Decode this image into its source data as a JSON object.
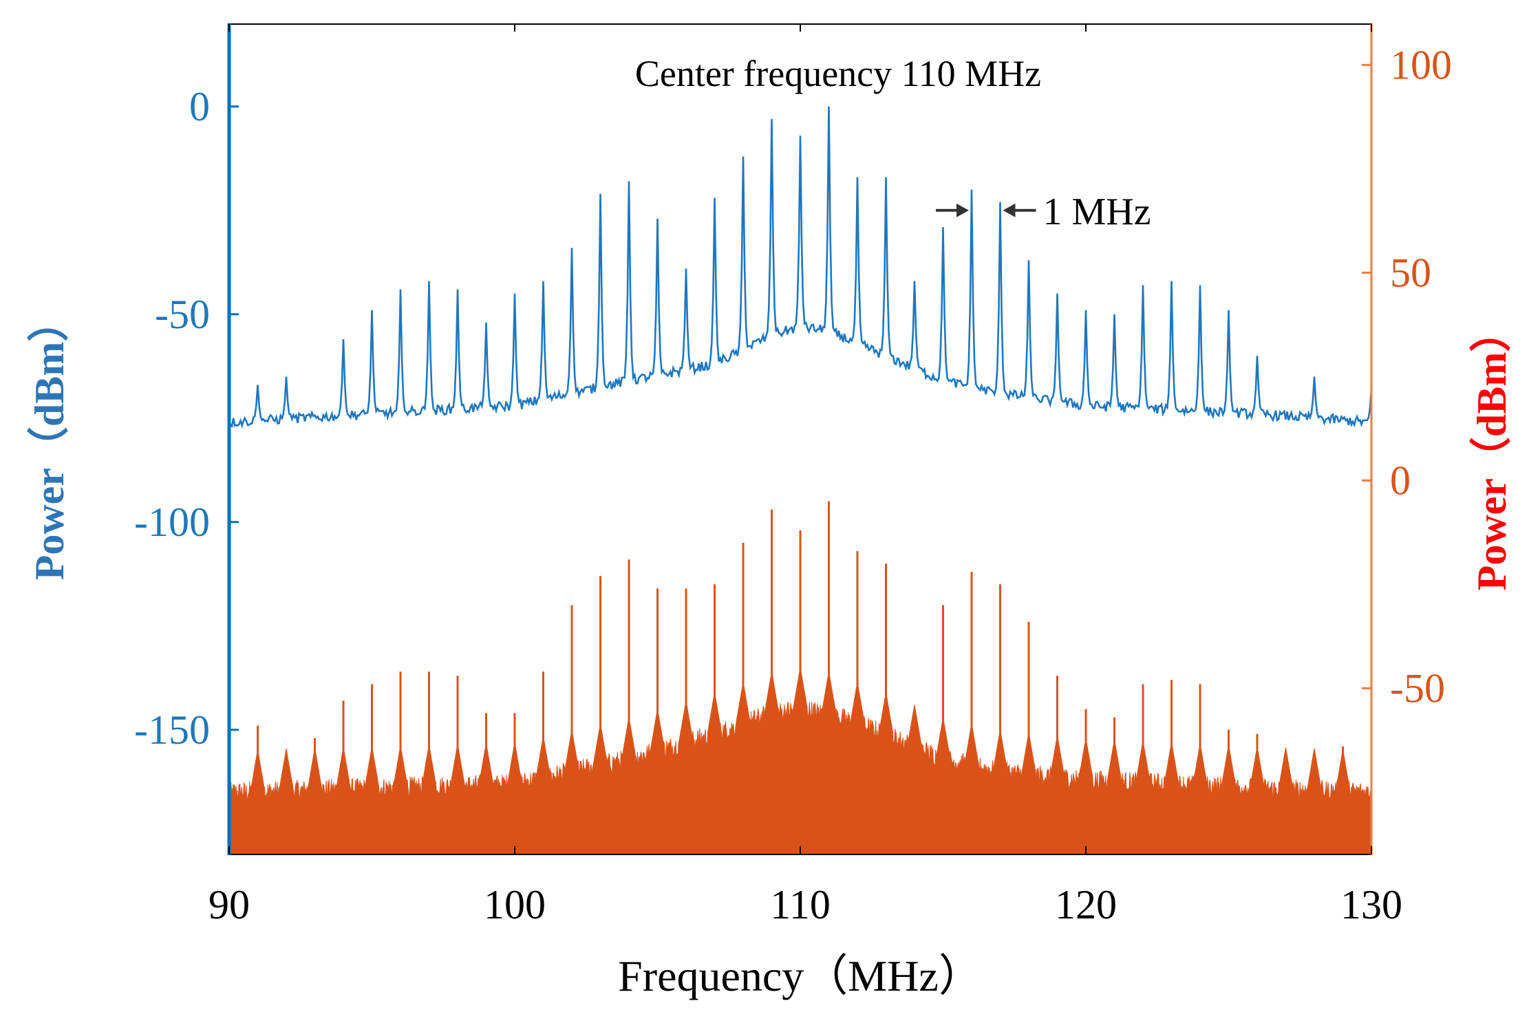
{
  "chart_data": {
    "type": "line",
    "title": "Center frequency 110 MHz",
    "xlabel": "Frequency（MHz）",
    "ylabel_left": "Power（dBm）",
    "ylabel_right": "Power（dBm）",
    "xlim": [
      90,
      130
    ],
    "ylim_left": [
      -180,
      20
    ],
    "ylim_right": [
      -90,
      110
    ],
    "x_ticks": [
      90,
      100,
      110,
      120,
      130
    ],
    "y_ticks_left": [
      0,
      -50,
      -100,
      -150
    ],
    "y_ticks_right": [
      100,
      50,
      0,
      -50
    ],
    "annotation": {
      "text": "1 MHz",
      "between": [
        116,
        117
      ]
    },
    "colors": {
      "left_series": "#1f77bf",
      "right_series": "#d95319",
      "left_axis": "#0072bd",
      "right_axis": "#e87d45",
      "left_tick_label": "#1f78b8",
      "right_tick_label": "#d95319",
      "left_ylabel": "#2e75b6",
      "right_ylabel": "#ff0000",
      "text": "#000000"
    },
    "series": [
      {
        "name": "blue spectrum (left axis, dBm)",
        "axis": "left",
        "baseline": [
          [
            90,
            -76
          ],
          [
            100,
            -72
          ],
          [
            104,
            -66
          ],
          [
            107,
            -62
          ],
          [
            109,
            -55
          ],
          [
            110,
            -53
          ],
          [
            111,
            -54
          ],
          [
            113,
            -60
          ],
          [
            115,
            -66
          ],
          [
            117,
            -69
          ],
          [
            120,
            -72
          ],
          [
            126,
            -74
          ],
          [
            130,
            -76
          ]
        ],
        "peaks": [
          [
            91,
            -67
          ],
          [
            92,
            -65
          ],
          [
            94,
            -56
          ],
          [
            95,
            -49
          ],
          [
            96,
            -44
          ],
          [
            97,
            -42
          ],
          [
            98,
            -44
          ],
          [
            99,
            -52
          ],
          [
            100,
            -45
          ],
          [
            101,
            -42
          ],
          [
            102,
            -34
          ],
          [
            103,
            -21
          ],
          [
            104,
            -18
          ],
          [
            105,
            -27
          ],
          [
            106,
            -39
          ],
          [
            107,
            -22
          ],
          [
            108,
            -12
          ],
          [
            109,
            -3
          ],
          [
            110,
            -7
          ],
          [
            111,
            0
          ],
          [
            112,
            -17
          ],
          [
            113,
            -17
          ],
          [
            114,
            -42
          ],
          [
            115,
            -29
          ],
          [
            116,
            -20
          ],
          [
            117,
            -23
          ],
          [
            118,
            -37
          ],
          [
            119,
            -45
          ],
          [
            120,
            -49
          ],
          [
            121,
            -50
          ],
          [
            122,
            -43
          ],
          [
            123,
            -42
          ],
          [
            124,
            -43
          ],
          [
            125,
            -49
          ],
          [
            126,
            -60
          ],
          [
            128,
            -65
          ],
          [
            130,
            -68
          ]
        ]
      },
      {
        "name": "orange spectrum (right axis, dBm)",
        "axis": "right",
        "baseline": [
          [
            90,
            -75
          ],
          [
            100,
            -73
          ],
          [
            104,
            -67
          ],
          [
            107,
            -61
          ],
          [
            109,
            -56
          ],
          [
            110,
            -55
          ],
          [
            111,
            -56
          ],
          [
            113,
            -61
          ],
          [
            115,
            -67
          ],
          [
            117,
            -70
          ],
          [
            120,
            -72
          ],
          [
            126,
            -74
          ],
          [
            130,
            -75
          ]
        ],
        "peaks": [
          [
            91,
            -59
          ],
          [
            92,
            -66
          ],
          [
            93,
            -62
          ],
          [
            94,
            -53
          ],
          [
            95,
            -49
          ],
          [
            96,
            -46
          ],
          [
            97,
            -46
          ],
          [
            98,
            -47
          ],
          [
            99,
            -56
          ],
          [
            100,
            -56
          ],
          [
            101,
            -46
          ],
          [
            102,
            -30
          ],
          [
            103,
            -23
          ],
          [
            104,
            -19
          ],
          [
            105,
            -26
          ],
          [
            106,
            -26
          ],
          [
            107,
            -25
          ],
          [
            108,
            -15
          ],
          [
            109,
            -7
          ],
          [
            110,
            -12
          ],
          [
            111,
            -5
          ],
          [
            112,
            -17
          ],
          [
            113,
            -20
          ],
          [
            114,
            -58
          ],
          [
            115,
            -30
          ],
          [
            116,
            -22
          ],
          [
            117,
            -25
          ],
          [
            118,
            -34
          ],
          [
            119,
            -47
          ],
          [
            120,
            -55
          ],
          [
            121,
            -57
          ],
          [
            122,
            -49
          ],
          [
            123,
            -48
          ],
          [
            124,
            -49
          ],
          [
            125,
            -60
          ],
          [
            126,
            -61
          ],
          [
            127,
            -67
          ],
          [
            128,
            -68
          ],
          [
            129,
            -64
          ]
        ]
      }
    ]
  }
}
